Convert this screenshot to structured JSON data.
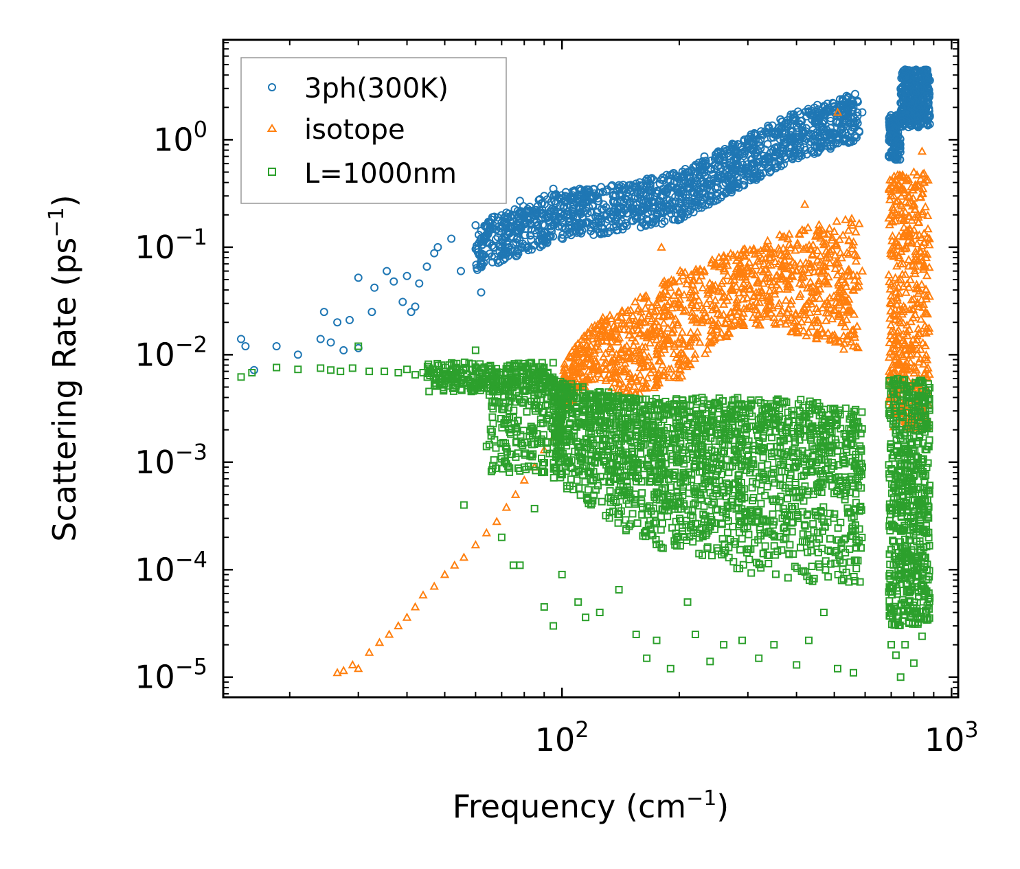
{
  "chart_data": {
    "type": "scatter",
    "title": "",
    "xlabel": "Frequency (cm",
    "xlabel_sup": "−1",
    "xlabel_end": ")",
    "ylabel": "Scattering Rate (ps",
    "ylabel_sup": "−1",
    "ylabel_end": ")",
    "xscale": "log",
    "yscale": "log",
    "xlim": [
      13.5,
      1040
    ],
    "ylim": [
      6.5e-06,
      8.5
    ],
    "legend_position": "top-left",
    "x_ticks": [
      {
        "value": 100,
        "base": "10",
        "exp": "2"
      },
      {
        "value": 1000,
        "base": "10",
        "exp": "3"
      }
    ],
    "y_ticks": [
      {
        "value": 1,
        "base": "10",
        "exp": "0"
      },
      {
        "value": 0.1,
        "base": "10",
        "exp": "−1"
      },
      {
        "value": 0.01,
        "base": "10",
        "exp": "−2"
      },
      {
        "value": 0.001,
        "base": "10",
        "exp": "−3"
      },
      {
        "value": 0.0001,
        "base": "10",
        "exp": "−4"
      },
      {
        "value": 1e-05,
        "base": "10",
        "exp": "−5"
      }
    ],
    "series": [
      {
        "name": "3ph(300K)",
        "marker": "circle",
        "color": "#1f77b4",
        "trend": [
          [
            16,
            0.013
          ],
          [
            22,
            0.011
          ],
          [
            30,
            0.03
          ],
          [
            40,
            0.05
          ],
          [
            50,
            0.08
          ],
          [
            60,
            0.12
          ],
          [
            80,
            0.18
          ],
          [
            100,
            0.22
          ],
          [
            150,
            0.25
          ],
          [
            200,
            0.32
          ],
          [
            300,
            0.7
          ],
          [
            400,
            1.2
          ],
          [
            500,
            1.5
          ],
          [
            580,
            1.7
          ]
        ],
        "spread": 0.55,
        "points": [
          [
            15.0,
            0.014
          ],
          [
            15.4,
            0.012
          ],
          [
            16.2,
            0.0072
          ],
          [
            18.5,
            0.012
          ],
          [
            21,
            0.01
          ],
          [
            24,
            0.014
          ],
          [
            24.5,
            0.025
          ],
          [
            25.5,
            0.013
          ],
          [
            26.5,
            0.02
          ],
          [
            27.5,
            0.011
          ],
          [
            28.5,
            0.021
          ],
          [
            30,
            0.0115
          ],
          [
            30,
            0.052
          ],
          [
            32.5,
            0.025
          ],
          [
            33,
            0.042
          ],
          [
            35.5,
            0.06
          ],
          [
            37,
            0.048
          ],
          [
            39,
            0.031
          ],
          [
            40,
            0.054
          ],
          [
            41,
            0.025
          ],
          [
            42,
            0.028
          ],
          [
            43,
            0.046
          ],
          [
            45,
            0.066
          ],
          [
            47,
            0.088
          ],
          [
            48,
            0.1
          ],
          [
            52,
            0.12
          ],
          [
            55,
            0.06
          ],
          [
            60,
            0.16
          ],
          [
            62,
            0.038
          ],
          [
            66,
            0.18
          ],
          [
            72,
            0.21
          ],
          [
            78,
            0.27
          ],
          [
            85,
            0.2
          ],
          [
            90,
            0.3
          ],
          [
            95,
            0.35
          ],
          [
            102,
            0.3
          ],
          [
            110,
            0.28
          ],
          [
            120,
            0.24
          ],
          [
            130,
            0.33
          ],
          [
            150,
            0.38
          ],
          [
            170,
            0.44
          ],
          [
            185,
            0.34
          ],
          [
            195,
            0.41
          ],
          [
            210,
            0.5
          ],
          [
            232,
            0.7
          ],
          [
            262,
            0.82
          ],
          [
            278,
            0.9
          ],
          [
            300,
            1.0
          ],
          [
            310,
            0.95
          ],
          [
            340,
            1.3
          ],
          [
            360,
            1.3
          ],
          [
            380,
            1.4
          ],
          [
            410,
            1.5
          ],
          [
            450,
            1.6
          ],
          [
            505,
            1.8
          ],
          [
            520,
            1.9
          ],
          [
            560,
            2.0
          ],
          [
            590,
            1.8
          ],
          [
            690,
            0.7
          ],
          [
            700,
            1.1
          ],
          [
            720,
            1.3
          ],
          [
            740,
            2.2
          ],
          [
            760,
            4.5
          ],
          [
            785,
            3.5
          ],
          [
            800,
            2.8
          ],
          [
            820,
            2.0
          ],
          [
            840,
            3.0
          ],
          [
            860,
            2.5
          ],
          [
            870,
            1.7
          ]
        ],
        "dense": [
          {
            "x0": 60,
            "x1": 580,
            "count": 1400,
            "yFn": "ph3"
          },
          {
            "x0": 690,
            "x1": 740,
            "count": 120,
            "y0": 0.65,
            "y1": 1.7
          },
          {
            "x0": 740,
            "x1": 880,
            "count": 350,
            "y0": 1.3,
            "y1": 4.5
          }
        ]
      },
      {
        "name": "isotope",
        "marker": "triangle",
        "color": "#ff7f0e",
        "points": [
          [
            26.5,
            1.1e-05
          ],
          [
            27.5,
            1.15e-05
          ],
          [
            29,
            1.3e-05
          ],
          [
            30,
            1.2e-05
          ],
          [
            32,
            1.7e-05
          ],
          [
            34,
            2.1e-05
          ],
          [
            36,
            2.5e-05
          ],
          [
            38,
            3e-05
          ],
          [
            40,
            3.6e-05
          ],
          [
            42,
            4.5e-05
          ],
          [
            44,
            5.8e-05
          ],
          [
            47,
            7e-05
          ],
          [
            50,
            9e-05
          ],
          [
            53,
            0.00011
          ],
          [
            56,
            0.00013
          ],
          [
            60,
            0.00017
          ],
          [
            64,
            0.00022
          ],
          [
            68,
            0.00028
          ],
          [
            72,
            0.00038
          ],
          [
            76,
            0.0005
          ],
          [
            80,
            0.00068
          ],
          [
            85,
            0.0009
          ],
          [
            90,
            0.0013
          ],
          [
            95,
            0.0017
          ],
          [
            100,
            0.0022
          ],
          [
            110,
            0.006
          ],
          [
            120,
            0.014
          ],
          [
            125,
            0.019
          ],
          [
            130,
            0.021
          ],
          [
            140,
            0.0095
          ],
          [
            150,
            0.026
          ],
          [
            160,
            0.022
          ],
          [
            170,
            0.028
          ],
          [
            175,
            0.016
          ],
          [
            180,
            0.1
          ],
          [
            195,
            0.0125
          ],
          [
            200,
            0.03
          ],
          [
            210,
            0.05
          ],
          [
            240,
            0.04
          ],
          [
            260,
            0.07
          ],
          [
            280,
            0.043
          ],
          [
            300,
            0.06
          ],
          [
            330,
            0.07
          ],
          [
            360,
            0.07
          ],
          [
            380,
            0.12
          ],
          [
            400,
            0.06
          ],
          [
            420,
            0.25
          ],
          [
            450,
            0.04
          ],
          [
            470,
            0.06
          ],
          [
            500,
            0.14
          ],
          [
            510,
            1.8
          ],
          [
            560,
            0.017
          ],
          [
            590,
            0.06
          ],
          [
            700,
            0.2
          ],
          [
            720,
            0.005
          ],
          [
            740,
            0.46
          ],
          [
            760,
            0.011
          ],
          [
            800,
            0.5
          ],
          [
            820,
            0.2
          ],
          [
            840,
            0.78
          ],
          [
            860,
            0.04
          ]
        ],
        "dense": [
          {
            "x0": 100,
            "x1": 580,
            "count": 1100,
            "yFn": "iso"
          },
          {
            "x0": 690,
            "x1": 880,
            "count": 450,
            "y0": 0.002,
            "y1": 0.5
          }
        ]
      },
      {
        "name": "L=1000nm",
        "marker": "square",
        "color": "#2ca02c",
        "points": [
          [
            15.0,
            0.0062
          ],
          [
            16.0,
            0.0068
          ],
          [
            18.5,
            0.0076
          ],
          [
            21,
            0.0073
          ],
          [
            24,
            0.0075
          ],
          [
            25.5,
            0.0072
          ],
          [
            27,
            0.007
          ],
          [
            29,
            0.0075
          ],
          [
            30,
            0.012
          ],
          [
            32,
            0.007
          ],
          [
            35,
            0.007
          ],
          [
            38,
            0.0068
          ],
          [
            40,
            0.0073
          ],
          [
            42,
            0.0065
          ],
          [
            44,
            0.0068
          ],
          [
            46,
            0.0072
          ],
          [
            48,
            0.0068
          ],
          [
            52,
            0.007
          ],
          [
            55,
            0.0068
          ],
          [
            56,
            0.0004
          ],
          [
            60,
            0.011
          ],
          [
            64,
            0.0014
          ],
          [
            70,
            0.0002
          ],
          [
            75,
            0.00011
          ],
          [
            78,
            0.00011
          ],
          [
            80,
            0.0009
          ],
          [
            85,
            0.00037
          ],
          [
            90,
            4.5e-05
          ],
          [
            95,
            3e-05
          ],
          [
            100,
            9e-05
          ],
          [
            110,
            5e-05
          ],
          [
            115,
            3.6e-05
          ],
          [
            125,
            4e-05
          ],
          [
            140,
            6.5e-05
          ],
          [
            155,
            2.5e-05
          ],
          [
            165,
            1.5e-05
          ],
          [
            175,
            2.2e-05
          ],
          [
            190,
            1.2e-05
          ],
          [
            210,
            5e-05
          ],
          [
            220,
            2.5e-05
          ],
          [
            240,
            1.4e-05
          ],
          [
            260,
            2e-05
          ],
          [
            290,
            2.2e-05
          ],
          [
            320,
            1.5e-05
          ],
          [
            350,
            2e-05
          ],
          [
            400,
            1.3e-05
          ],
          [
            430,
            2.2e-05
          ],
          [
            470,
            4e-05
          ],
          [
            510,
            1.2e-05
          ],
          [
            560,
            1.1e-05
          ],
          [
            590,
            0.0009
          ],
          [
            700,
            2e-05
          ],
          [
            720,
            1.6e-05
          ],
          [
            740,
            1e-05
          ],
          [
            760,
            2e-05
          ],
          [
            800,
            1.35e-05
          ],
          [
            840,
            2.4e-05
          ]
        ],
        "dense": [
          {
            "x0": 45,
            "x1": 95,
            "count": 300,
            "y0": 0.0045,
            "y1": 0.0085
          },
          {
            "x0": 65,
            "x1": 100,
            "count": 220,
            "y0": 0.0008,
            "y1": 0.006
          },
          {
            "x0": 95,
            "x1": 590,
            "count": 1900,
            "yFn": "l1000"
          },
          {
            "x0": 690,
            "x1": 880,
            "count": 600,
            "y0": 3e-05,
            "y1": 0.006
          }
        ]
      }
    ]
  }
}
